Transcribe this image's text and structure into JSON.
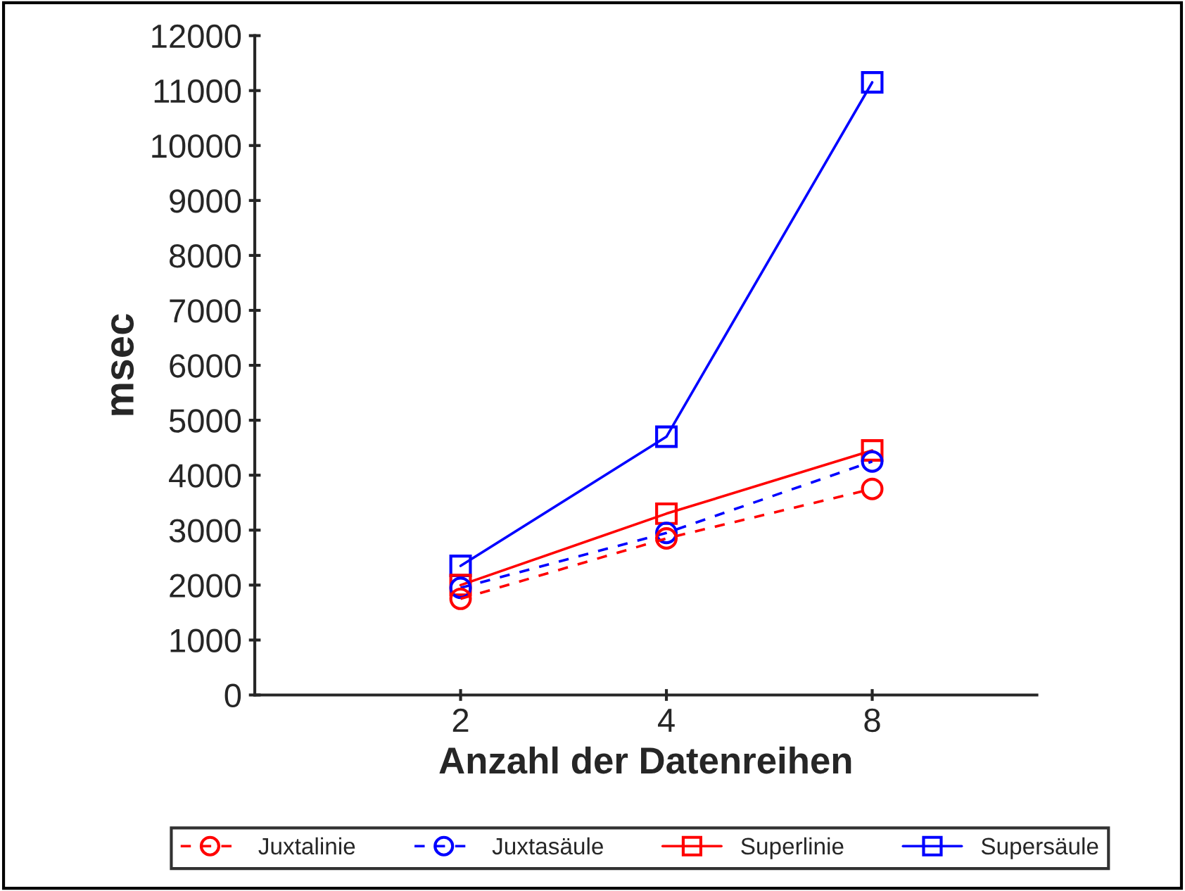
{
  "chart_data": {
    "type": "line",
    "xlabel": "Anzahl der Datenreihen",
    "ylabel": "msec",
    "categories": [
      "2",
      "4",
      "8"
    ],
    "series": [
      {
        "name": "Juxtalinie",
        "color": "#ff0000",
        "marker": "circle",
        "line_style": "dashed",
        "values": [
          1750,
          2850,
          3750
        ]
      },
      {
        "name": "Juxtasäule",
        "color": "#0000ff",
        "marker": "circle",
        "line_style": "dashed",
        "values": [
          1950,
          2950,
          4250
        ]
      },
      {
        "name": "Superlinie",
        "color": "#ff0000",
        "marker": "square",
        "line_style": "solid",
        "values": [
          2000,
          3300,
          4450
        ]
      },
      {
        "name": "Supersäule",
        "color": "#0000ff",
        "marker": "square",
        "line_style": "solid",
        "values": [
          2350,
          4700,
          11150
        ]
      }
    ],
    "ylim": [
      0,
      12000
    ],
    "yticks": [
      0,
      1000,
      2000,
      3000,
      4000,
      5000,
      6000,
      7000,
      8000,
      9000,
      10000,
      11000,
      12000
    ],
    "grid": false,
    "legend": "bottom"
  }
}
